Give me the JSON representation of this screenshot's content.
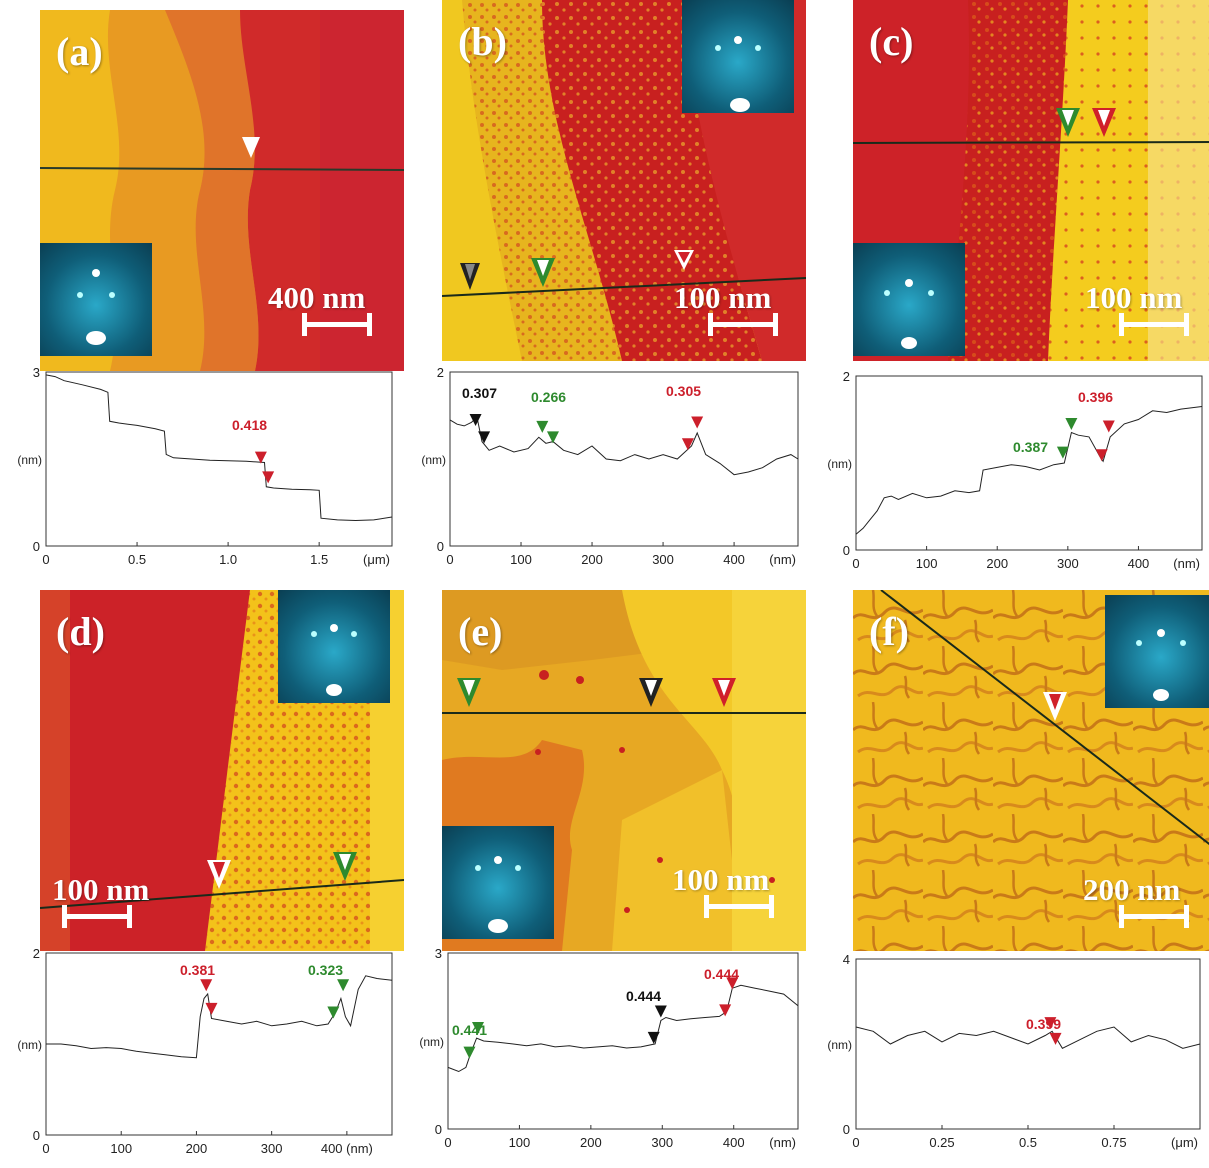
{
  "panels": [
    {
      "label": "(a)",
      "scale": "400 nm"
    },
    {
      "label": "(b)",
      "scale": "100 nm"
    },
    {
      "label": "(c)",
      "scale": "100 nm"
    },
    {
      "label": "(d)",
      "scale": "100 nm"
    },
    {
      "label": "(e)",
      "scale": "100 nm"
    },
    {
      "label": "(f)",
      "scale": "200 nm"
    }
  ],
  "colors": {
    "red": "#cc1f2b",
    "green": "#2e8a2e",
    "black": "#111111",
    "afm_red": "#c81d25",
    "afm_orange": "#e06a18",
    "afm_yellow": "#f3c21a"
  },
  "chart_data": [
    {
      "type": "line",
      "panel": "(a)",
      "ylabel": "(nm)",
      "xunit": "(μm)",
      "xlim": [
        0,
        1.9
      ],
      "ylim": [
        0,
        3
      ],
      "xticks": [
        "0",
        "0.5",
        "1.0",
        "1.5"
      ],
      "yticks": [
        "0",
        "3"
      ],
      "x": [
        0,
        0.05,
        0.1,
        0.2,
        0.3,
        0.34,
        0.35,
        0.4,
        0.5,
        0.6,
        0.65,
        0.66,
        0.7,
        0.8,
        0.9,
        1.0,
        1.1,
        1.2,
        1.21,
        1.25,
        1.35,
        1.45,
        1.5,
        1.51,
        1.6,
        1.7,
        1.8,
        1.9
      ],
      "y": [
        2.95,
        2.92,
        2.85,
        2.78,
        2.7,
        2.65,
        2.15,
        2.12,
        2.08,
        2.02,
        1.98,
        1.58,
        1.52,
        1.5,
        1.48,
        1.47,
        1.46,
        1.44,
        1.02,
        1.0,
        0.98,
        0.97,
        0.96,
        0.48,
        0.45,
        0.44,
        0.45,
        0.5
      ],
      "markers": [
        {
          "x": 1.18,
          "y": 1.42,
          "color": "red"
        },
        {
          "x": 1.22,
          "y": 1.08,
          "color": "red"
        }
      ],
      "annotations": [
        {
          "text": "0.418",
          "color": "red"
        }
      ]
    },
    {
      "type": "line",
      "panel": "(b)",
      "ylabel": "(nm)",
      "xunit": "(nm)",
      "xlim": [
        0,
        490
      ],
      "ylim": [
        0,
        2
      ],
      "xticks": [
        "0",
        "100",
        "200",
        "300",
        "400"
      ],
      "yticks": [
        "0",
        "2"
      ],
      "x": [
        0,
        10,
        20,
        30,
        38,
        45,
        55,
        70,
        90,
        110,
        125,
        135,
        145,
        160,
        180,
        200,
        220,
        240,
        260,
        280,
        300,
        320,
        340,
        348,
        360,
        380,
        400,
        420,
        440,
        460,
        480,
        490
      ],
      "y": [
        1.45,
        1.4,
        1.38,
        1.42,
        1.48,
        1.2,
        1.1,
        1.15,
        1.08,
        1.12,
        1.25,
        1.18,
        1.2,
        1.1,
        1.05,
        1.15,
        1.0,
        0.98,
        1.05,
        1.0,
        1.05,
        1.0,
        1.15,
        1.3,
        1.05,
        0.95,
        0.82,
        0.85,
        0.9,
        1.0,
        1.05,
        1.0
      ],
      "markers": [
        {
          "x": 36,
          "y": 1.38,
          "color": "black"
        },
        {
          "x": 48,
          "y": 1.18,
          "color": "black"
        },
        {
          "x": 130,
          "y": 1.3,
          "color": "green"
        },
        {
          "x": 145,
          "y": 1.18,
          "color": "green"
        },
        {
          "x": 335,
          "y": 1.1,
          "color": "red"
        },
        {
          "x": 348,
          "y": 1.35,
          "color": "red"
        }
      ],
      "annotations": [
        {
          "text": "0.307",
          "color": "black"
        },
        {
          "text": "0.266",
          "color": "green"
        },
        {
          "text": "0.305",
          "color": "red"
        }
      ]
    },
    {
      "type": "line",
      "panel": "(c)",
      "ylabel": "(nm)",
      "xunit": "(nm)",
      "xlim": [
        0,
        490
      ],
      "ylim": [
        0,
        2
      ],
      "xticks": [
        "0",
        "100",
        "200",
        "300",
        "400"
      ],
      "yticks": [
        "0",
        "2"
      ],
      "x": [
        0,
        10,
        20,
        30,
        40,
        50,
        60,
        80,
        100,
        120,
        140,
        160,
        175,
        180,
        200,
        220,
        240,
        260,
        280,
        295,
        305,
        315,
        330,
        345,
        350,
        360,
        380,
        400,
        420,
        440,
        460,
        490
      ],
      "y": [
        0.18,
        0.25,
        0.35,
        0.45,
        0.6,
        0.62,
        0.58,
        0.65,
        0.6,
        0.62,
        0.68,
        0.66,
        0.68,
        0.92,
        0.95,
        0.98,
        0.96,
        0.92,
        0.98,
        1.0,
        1.35,
        1.32,
        1.3,
        1.08,
        1.02,
        1.3,
        1.45,
        1.5,
        1.6,
        1.58,
        1.62,
        1.65
      ],
      "markers": [
        {
          "x": 293,
          "y": 1.05,
          "color": "green"
        },
        {
          "x": 305,
          "y": 1.38,
          "color": "green"
        },
        {
          "x": 348,
          "y": 1.02,
          "color": "red"
        },
        {
          "x": 358,
          "y": 1.35,
          "color": "red"
        }
      ],
      "annotations": [
        {
          "text": "0.387",
          "color": "green"
        },
        {
          "text": "0.396",
          "color": "red"
        }
      ]
    },
    {
      "type": "line",
      "panel": "(d)",
      "ylabel": "(nm)",
      "xunit": "(nm)",
      "xlim": [
        0,
        460
      ],
      "ylim": [
        0,
        2
      ],
      "xticks": [
        "0",
        "100",
        "200",
        "300",
        "400 (nm)"
      ],
      "yticks": [
        "0",
        "2"
      ],
      "x": [
        0,
        20,
        40,
        60,
        80,
        100,
        120,
        140,
        160,
        180,
        200,
        205,
        210,
        215,
        220,
        240,
        260,
        280,
        300,
        320,
        340,
        360,
        375,
        385,
        392,
        398,
        405,
        415,
        425,
        440,
        460
      ],
      "y": [
        1.0,
        1.0,
        0.98,
        0.95,
        0.96,
        0.95,
        0.92,
        0.9,
        0.88,
        0.86,
        0.85,
        1.3,
        1.5,
        1.55,
        1.28,
        1.25,
        1.22,
        1.25,
        1.2,
        1.22,
        1.25,
        1.2,
        1.22,
        1.35,
        1.5,
        1.3,
        1.2,
        1.6,
        1.75,
        1.72,
        1.7
      ],
      "markers": [
        {
          "x": 213,
          "y": 1.58,
          "color": "red"
        },
        {
          "x": 220,
          "y": 1.32,
          "color": "red"
        },
        {
          "x": 382,
          "y": 1.28,
          "color": "green"
        },
        {
          "x": 395,
          "y": 1.58,
          "color": "green"
        }
      ],
      "annotations": [
        {
          "text": "0.381",
          "color": "red"
        },
        {
          "text": "0.323",
          "color": "green"
        }
      ]
    },
    {
      "type": "line",
      "panel": "(e)",
      "ylabel": "(nm)",
      "xunit": "(nm)",
      "xlim": [
        0,
        490
      ],
      "ylim": [
        0,
        3
      ],
      "xticks": [
        "0",
        "100",
        "200",
        "300",
        "400"
      ],
      "yticks": [
        "0",
        "3"
      ],
      "x": [
        0,
        15,
        25,
        32,
        40,
        50,
        70,
        90,
        110,
        130,
        150,
        170,
        190,
        210,
        230,
        250,
        270,
        290,
        298,
        305,
        320,
        340,
        360,
        380,
        390,
        398,
        410,
        430,
        450,
        470,
        490
      ],
      "y": [
        1.05,
        0.98,
        1.05,
        1.3,
        1.55,
        1.5,
        1.48,
        1.45,
        1.42,
        1.45,
        1.4,
        1.42,
        1.38,
        1.4,
        1.42,
        1.38,
        1.4,
        1.45,
        1.85,
        1.9,
        1.85,
        1.88,
        1.9,
        1.92,
        2.0,
        2.4,
        2.45,
        2.4,
        2.35,
        2.3,
        2.1
      ],
      "markers": [
        {
          "x": 30,
          "y": 1.2,
          "color": "green"
        },
        {
          "x": 42,
          "y": 1.62,
          "color": "green"
        },
        {
          "x": 288,
          "y": 1.45,
          "color": "black"
        },
        {
          "x": 298,
          "y": 1.9,
          "color": "black"
        },
        {
          "x": 388,
          "y": 1.92,
          "color": "red"
        },
        {
          "x": 398,
          "y": 2.38,
          "color": "red"
        }
      ],
      "annotations": [
        {
          "text": "0.441",
          "color": "green"
        },
        {
          "text": "0.444",
          "color": "black"
        },
        {
          "text": "0.444",
          "color": "red"
        }
      ]
    },
    {
      "type": "line",
      "panel": "(f)",
      "ylabel": "(nm)",
      "xunit": "(μm)",
      "xlim": [
        0,
        1.0
      ],
      "ylim": [
        0,
        4
      ],
      "xticks": [
        "0",
        "0.25",
        "0.5",
        "0.75"
      ],
      "yticks": [
        "0",
        "4"
      ],
      "x": [
        0,
        0.05,
        0.1,
        0.15,
        0.2,
        0.25,
        0.3,
        0.35,
        0.4,
        0.45,
        0.5,
        0.55,
        0.57,
        0.6,
        0.65,
        0.7,
        0.75,
        0.8,
        0.85,
        0.9,
        0.95,
        1.0
      ],
      "y": [
        2.4,
        2.3,
        2.0,
        2.2,
        2.3,
        2.05,
        2.25,
        2.2,
        2.3,
        2.15,
        2.0,
        2.2,
        2.3,
        1.9,
        2.1,
        2.3,
        2.4,
        2.05,
        2.2,
        2.1,
        1.9,
        2.0
      ],
      "markers": [
        {
          "x": 0.565,
          "y": 2.35,
          "color": "red"
        },
        {
          "x": 0.58,
          "y": 1.98,
          "color": "red"
        }
      ],
      "annotations": [
        {
          "text": "0.399",
          "color": "red"
        }
      ]
    }
  ]
}
